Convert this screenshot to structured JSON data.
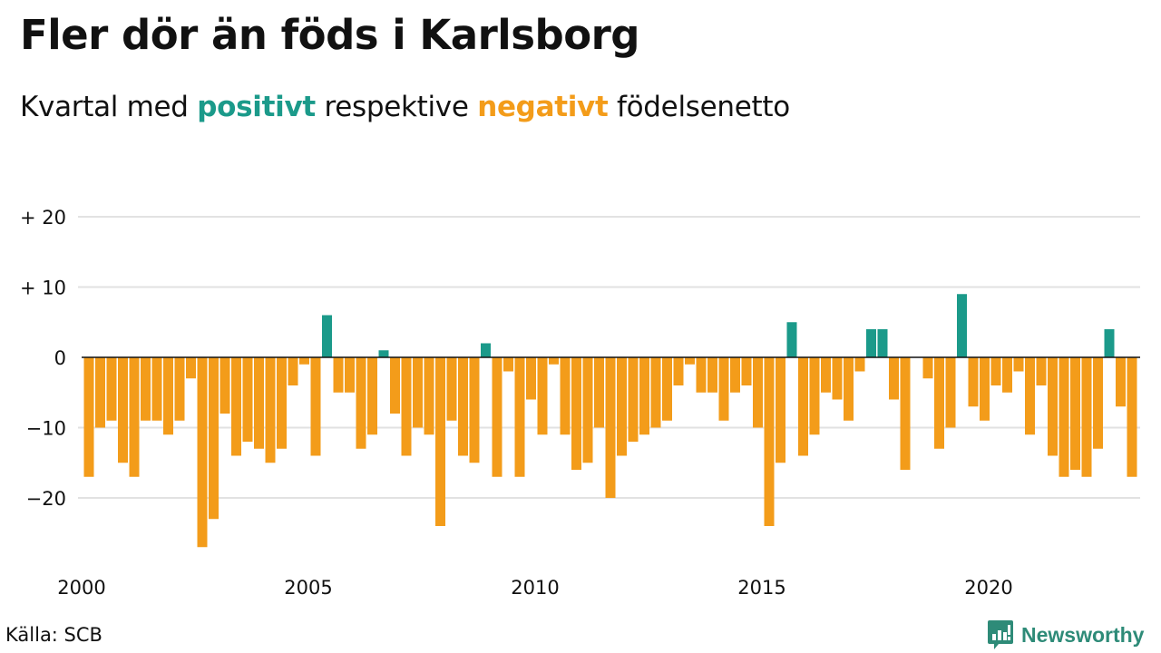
{
  "title": "Fler dör än föds i Karlsborg",
  "subtitle": {
    "prefix": "Kvartal med ",
    "positive_word": "positivt",
    "middle": " respektive ",
    "negative_word": "negativt",
    "suffix": " födelsenetto"
  },
  "colors": {
    "positive": "#1b9a8a",
    "negative": "#f39c1a",
    "grid": "#e2e2e2",
    "zero_line": "#111111",
    "brand": "#2e8b78"
  },
  "source": "Källa: SCB",
  "brand": {
    "name": "Newsworthy",
    "icon": "bar-chart-speech-bubble-icon"
  },
  "chart_data": {
    "type": "bar",
    "title": "Fler dör än föds i Karlsborg",
    "subtitle": "Kvartal med positivt respektive negativt födelsenetto",
    "xlabel": "",
    "ylabel": "",
    "start_year": 2000,
    "start_quarter": 1,
    "frequency": "quarterly",
    "categories": [
      "2000Q1",
      "2000Q2",
      "2000Q3",
      "2000Q4",
      "2001Q1",
      "2001Q2",
      "2001Q3",
      "2001Q4",
      "2002Q1",
      "2002Q2",
      "2002Q3",
      "2002Q4",
      "2003Q1",
      "2003Q2",
      "2003Q3",
      "2003Q4",
      "2004Q1",
      "2004Q2",
      "2004Q3",
      "2004Q4",
      "2005Q1",
      "2005Q2",
      "2005Q3",
      "2005Q4",
      "2006Q1",
      "2006Q2",
      "2006Q3",
      "2006Q4",
      "2007Q1",
      "2007Q2",
      "2007Q3",
      "2007Q4",
      "2008Q1",
      "2008Q2",
      "2008Q3",
      "2008Q4",
      "2009Q1",
      "2009Q2",
      "2009Q3",
      "2009Q4",
      "2010Q1",
      "2010Q2",
      "2010Q3",
      "2010Q4",
      "2011Q1",
      "2011Q2",
      "2011Q3",
      "2011Q4",
      "2012Q1",
      "2012Q2",
      "2012Q3",
      "2012Q4",
      "2013Q1",
      "2013Q2",
      "2013Q3",
      "2013Q4",
      "2014Q1",
      "2014Q2",
      "2014Q3",
      "2014Q4",
      "2015Q1",
      "2015Q2",
      "2015Q3",
      "2015Q4",
      "2016Q1",
      "2016Q2",
      "2016Q3",
      "2016Q4",
      "2017Q1",
      "2017Q2",
      "2017Q3",
      "2017Q4",
      "2018Q1",
      "2018Q2",
      "2018Q3",
      "2018Q4",
      "2019Q1",
      "2019Q2",
      "2019Q3",
      "2019Q4",
      "2020Q1",
      "2020Q2",
      "2020Q3",
      "2020Q4",
      "2021Q1",
      "2021Q2",
      "2021Q3",
      "2021Q4",
      "2022Q1",
      "2022Q2",
      "2022Q3",
      "2022Q4",
      "2023Q1"
    ],
    "values": [
      -17,
      -10,
      -9,
      -15,
      -17,
      -9,
      -9,
      -11,
      -9,
      -3,
      -27,
      -23,
      -8,
      -14,
      -12,
      -13,
      -15,
      -13,
      -4,
      -1,
      -14,
      6,
      -5,
      -5,
      -13,
      -11,
      1,
      -8,
      -14,
      -10,
      -11,
      -24,
      -9,
      -14,
      -15,
      2,
      -17,
      -2,
      -17,
      -6,
      -11,
      -1,
      -11,
      -16,
      -15,
      -10,
      -20,
      -14,
      -12,
      -11,
      -10,
      -9,
      -4,
      -1,
      -5,
      -5,
      -9,
      -5,
      -4,
      -10,
      -24,
      -15,
      5,
      -14,
      -11,
      -5,
      -6,
      -9,
      -2,
      4,
      4,
      -6,
      -16,
      0,
      -3,
      -13,
      -10,
      9,
      -7,
      -9,
      -4,
      -5,
      -2,
      -11,
      -4,
      -14,
      -17,
      -16,
      -17,
      -13,
      4,
      -7,
      -17
    ],
    "ylim": [
      -27,
      20
    ],
    "yticks": [
      20,
      10,
      0,
      -10,
      -20
    ],
    "ytick_labels": [
      "+ 20",
      "+ 10",
      "0",
      "−10",
      "−20"
    ],
    "xticks": [
      2000,
      2005,
      2010,
      2015,
      2020
    ],
    "xtick_labels": [
      "2000",
      "2005",
      "2010",
      "2015",
      "2020"
    ],
    "grid": true,
    "legend": "none (colors explained in subtitle)"
  }
}
